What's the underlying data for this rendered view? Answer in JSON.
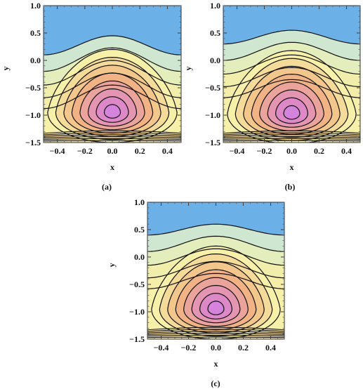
{
  "chart_data": [
    {
      "type": "contour",
      "caption": "(a)",
      "xlabel": "x",
      "ylabel": "y",
      "xlim": [
        -0.5,
        0.5
      ],
      "ylim": [
        -1.5,
        1.0
      ],
      "x_ticks": [
        "-0.4",
        "-0.2",
        "0.0",
        "0.2",
        "0.4"
      ],
      "y_ticks": [
        "1.0",
        "0.5",
        "0.0",
        "-0.5",
        "-1.0",
        "-1.5"
      ],
      "vortex_center": [
        0.0,
        -0.95
      ],
      "top_region_boundary_y": [
        0.1,
        0.45
      ],
      "colors": {
        "top": "#6cb0e8",
        "low": "#f6f0a8",
        "mid": "#f2b680",
        "high": "#e08cc0",
        "center": "#cd7cf0"
      }
    },
    {
      "type": "contour",
      "caption": "(b)",
      "xlabel": "x",
      "ylabel": "y",
      "xlim": [
        -0.5,
        0.5
      ],
      "ylim": [
        -1.5,
        1.0
      ],
      "x_ticks": [
        "-0.4",
        "-0.2",
        "0.0",
        "0.2",
        "0.4"
      ],
      "y_ticks": [
        "1.0",
        "0.5",
        "0.0",
        "-0.5",
        "-1.0",
        "-1.5"
      ],
      "vortex_center": [
        0.0,
        -0.97
      ],
      "top_region_boundary_y": [
        0.3,
        0.55
      ],
      "colors": {
        "top": "#6cb0e8",
        "low": "#f6f0a8",
        "mid": "#f2b680",
        "high": "#e08cc0",
        "center": "#cd7cf0"
      }
    },
    {
      "type": "contour",
      "caption": "(c)",
      "xlabel": "x",
      "ylabel": "y",
      "xlim": [
        -0.5,
        0.5
      ],
      "ylim": [
        -1.5,
        1.0
      ],
      "x_ticks": [
        "-0.4",
        "-0.2",
        "0.0",
        "0.2",
        "0.4"
      ],
      "y_ticks": [
        "1.0",
        "0.5",
        "0.0",
        "-0.5",
        "-1.0",
        "-1.5"
      ],
      "vortex_center": [
        0.0,
        -0.95
      ],
      "top_region_boundary_y": [
        0.4,
        0.6
      ],
      "colors": {
        "top": "#6cb0e8",
        "low": "#f6f0a8",
        "mid": "#f2b680",
        "high": "#e08cc0",
        "center": "#cd7cf0"
      }
    }
  ]
}
